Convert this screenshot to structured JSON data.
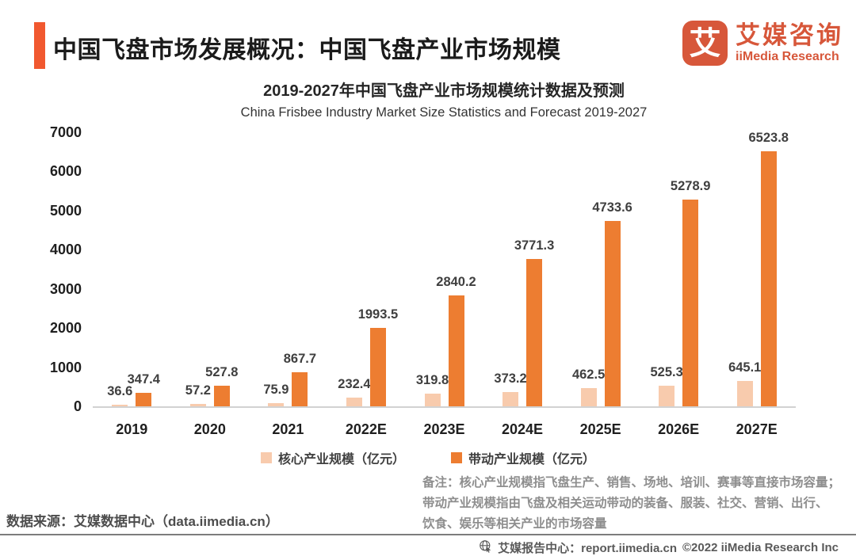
{
  "header": {
    "title": "中国飞盘市场发展概况：中国飞盘产业市场规模",
    "logo": {
      "mark": "艾",
      "name_cn": "艾媒咨询",
      "name_en": "iiMedia Research"
    }
  },
  "chart_data": {
    "type": "bar",
    "title": "2019-2027年中国飞盘产业市场规模统计数据及预测",
    "subtitle": "China Frisbee Industry Market Size Statistics and Forecast 2019-2027",
    "categories": [
      "2019",
      "2020",
      "2021",
      "2022E",
      "2023E",
      "2024E",
      "2025E",
      "2026E",
      "2027E"
    ],
    "series": [
      {
        "name": "核心产业规模（亿元）",
        "color": "#F8CBAD",
        "values": [
          36.6,
          57.2,
          75.9,
          232.4,
          319.8,
          373.2,
          462.5,
          525.3,
          645.1
        ]
      },
      {
        "name": "带动产业规模（亿元）",
        "color": "#ED7D31",
        "values": [
          347.4,
          527.8,
          867.7,
          1993.5,
          2840.2,
          3771.3,
          4733.6,
          5278.9,
          6523.8
        ]
      }
    ],
    "ylim": [
      0,
      7000
    ],
    "yticks": [
      0,
      1000,
      2000,
      3000,
      4000,
      5000,
      6000,
      7000
    ],
    "xlabel": "",
    "ylabel": "",
    "grid": false,
    "legend_position": "bottom",
    "data_labels": true
  },
  "note": "备注：核心产业规模指飞盘生产、销售、场地、培训、赛事等直接市场容量；\n带动产业规模指由飞盘及相关运动带动的装备、服装、社交、营销、出行、\n饮食、娱乐等相关产业的市场容量",
  "source": "数据来源：艾媒数据中心（data.iimedia.cn）",
  "footer": {
    "report_center": "艾媒报告中心：report.iimedia.cn",
    "copyright": "©2022  iiMedia Research  Inc"
  },
  "colors": {
    "accent": "#F1582F",
    "logo": "#D7573A",
    "series_core": "#F8CBAD",
    "series_driven": "#ED7D31"
  }
}
